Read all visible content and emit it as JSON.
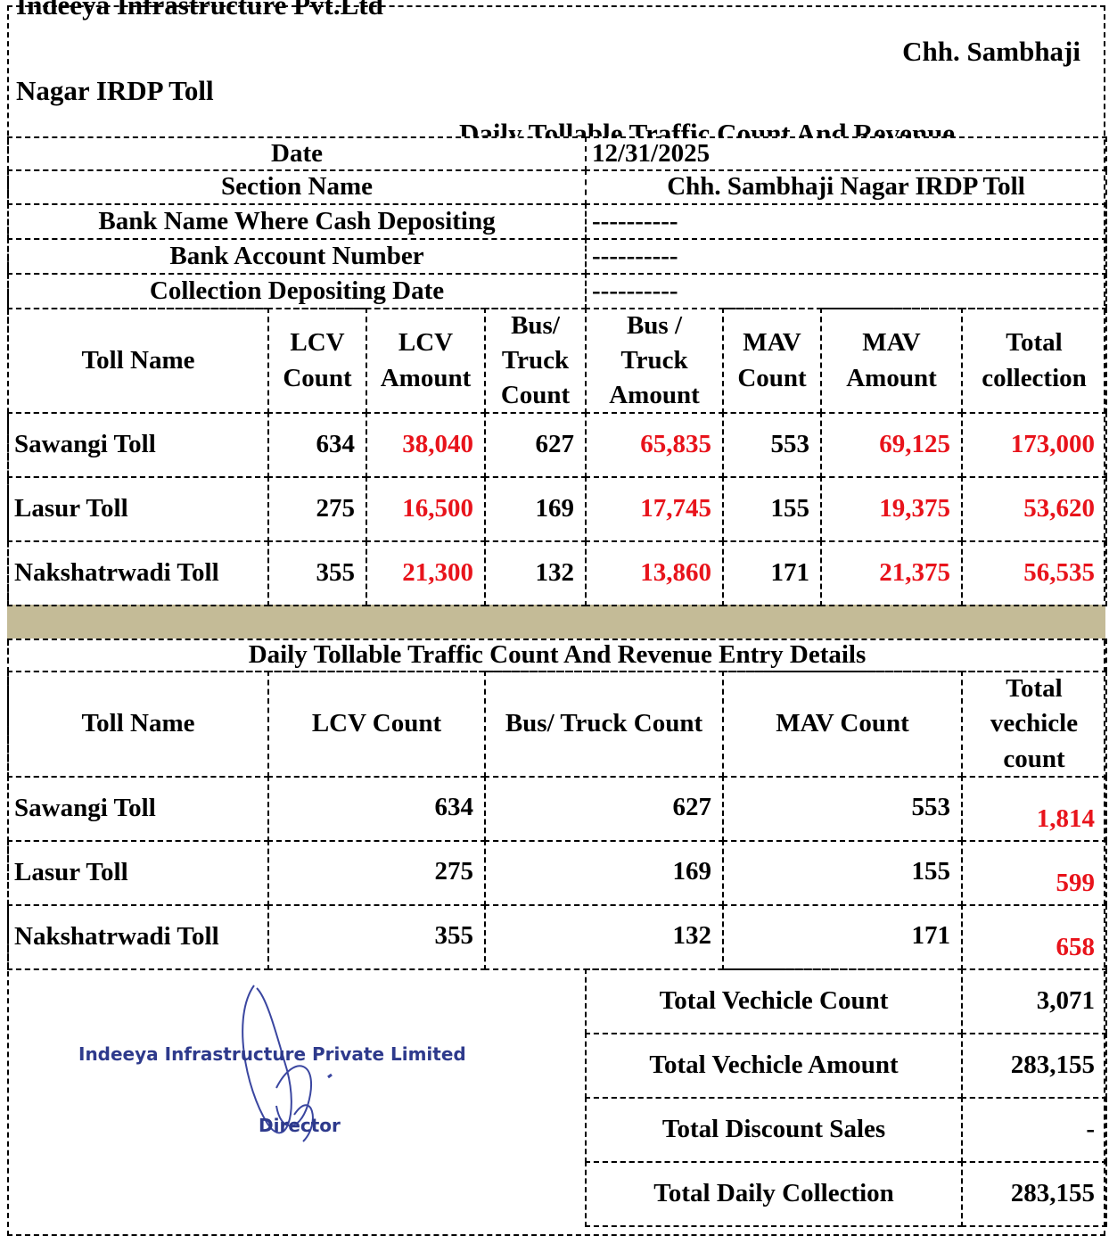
{
  "header": {
    "company": "Indeeya Infrastructure Pvt.Ltd",
    "title_line1": "Chh. Sambhaji",
    "title_line2": "Nagar IRDP Toll",
    "subtitle": "Daily Tollable Traffic Count And Revenue"
  },
  "info": [
    {
      "label": "Date",
      "value": "12/31/2025"
    },
    {
      "label": "Section Name",
      "value": "Chh. Sambhaji Nagar IRDP Toll"
    },
    {
      "label": "Bank Name Where Cash Depositing",
      "value": "----------"
    },
    {
      "label": "Bank Account Number",
      "value": "----------"
    },
    {
      "label": "Collection Depositing Date",
      "value": "----------"
    }
  ],
  "revenue_table": {
    "headers": [
      "Toll Name",
      "LCV Count",
      "LCV Amount",
      "Bus/ Truck Count",
      "Bus / Truck Amount",
      "MAV Count",
      "MAV Amount",
      "Total collection"
    ],
    "rows": [
      [
        "Sawangi Toll",
        "634",
        "38,040",
        "627",
        "65,835",
        "553",
        "69,125",
        "173,000"
      ],
      [
        "Lasur Toll",
        "275",
        "16,500",
        "169",
        "17,745",
        "155",
        "19,375",
        "53,620"
      ],
      [
        "Nakshatrwadi Toll",
        "355",
        "21,300",
        "132",
        "13,860",
        "171",
        "21,375",
        "56,535"
      ]
    ]
  },
  "count_table": {
    "title": "Daily Tollable Traffic Count And Revenue Entry Details",
    "headers": [
      "Toll Name",
      "LCV Count",
      "Bus/ Truck Count",
      "MAV Count",
      "Total vechicle count"
    ],
    "rows": [
      [
        "Sawangi Toll",
        "634",
        "627",
        "553",
        "1,814"
      ],
      [
        "Lasur Toll",
        "275",
        "169",
        "155",
        "599"
      ],
      [
        "Nakshatrwadi Toll",
        "355",
        "132",
        "171",
        "658"
      ]
    ]
  },
  "signature": {
    "company": "Indeeya Infrastructure Private Limited",
    "role": "Director"
  },
  "totals": [
    {
      "label": "Total Vechicle Count",
      "value": "3,071"
    },
    {
      "label": "Total Vechicle Amount",
      "value": "283,155"
    },
    {
      "label": "Total Discount Sales",
      "value": "-"
    },
    {
      "label": "Total Daily Collection",
      "value": "283,155"
    }
  ]
}
